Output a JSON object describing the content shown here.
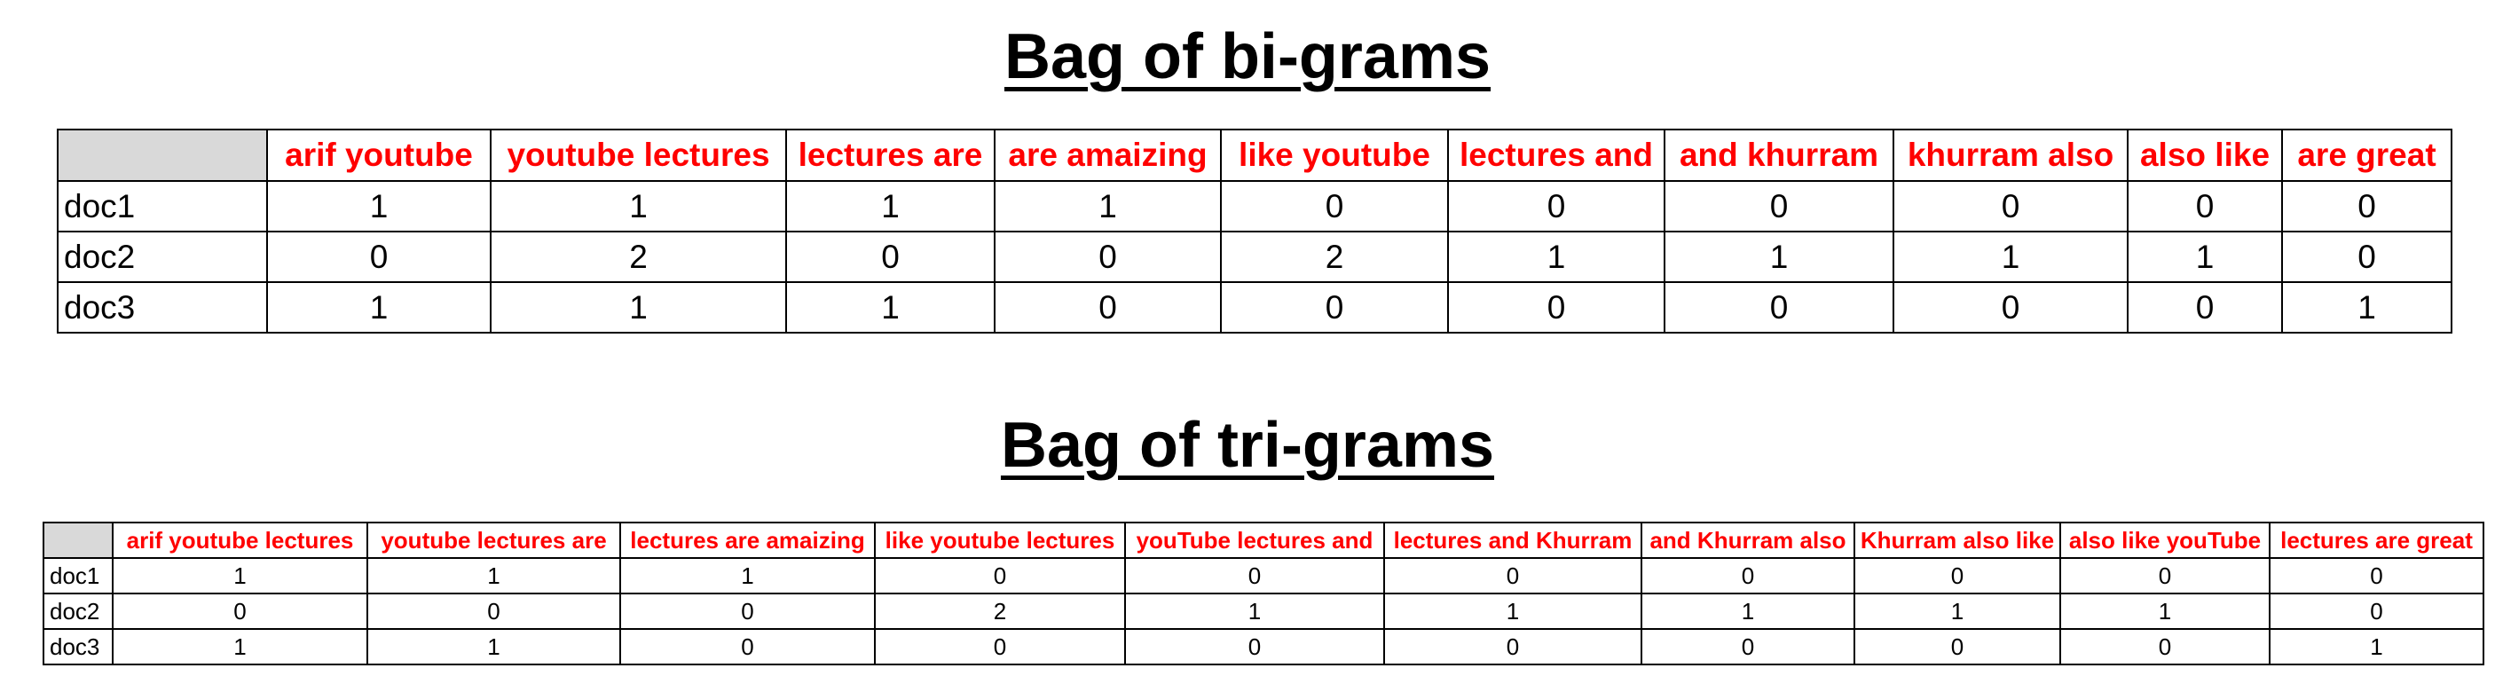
{
  "bigrams": {
    "title": "Bag of bi-grams",
    "headers": [
      "arif youtube",
      "youtube lectures",
      "lectures are",
      "are amaizing",
      "like youtube",
      "lectures and",
      "and khurram",
      "khurram also",
      "also like",
      "are great"
    ],
    "rows": [
      {
        "label": "doc1",
        "values": [
          "1",
          "1",
          "1",
          "1",
          "0",
          "0",
          "0",
          "0",
          "0",
          "0"
        ]
      },
      {
        "label": "doc2",
        "values": [
          "0",
          "2",
          "0",
          "0",
          "2",
          "1",
          "1",
          "1",
          "1",
          "0"
        ]
      },
      {
        "label": "doc3",
        "values": [
          "1",
          "1",
          "1",
          "0",
          "0",
          "0",
          "0",
          "0",
          "0",
          "1"
        ]
      }
    ]
  },
  "trigrams": {
    "title": "Bag of tri-grams",
    "headers": [
      "arif youtube lectures",
      "youtube lectures are",
      "lectures are amaizing",
      "like youtube lectures",
      "youTube lectures and",
      "lectures and Khurram",
      "and Khurram also",
      "Khurram also like",
      "also like youTube",
      "lectures are great"
    ],
    "rows": [
      {
        "label": "doc1",
        "values": [
          "1",
          "1",
          "1",
          "0",
          "0",
          "0",
          "0",
          "0",
          "0",
          "0"
        ]
      },
      {
        "label": "doc2",
        "values": [
          "0",
          "0",
          "0",
          "2",
          "1",
          "1",
          "1",
          "1",
          "1",
          "0"
        ]
      },
      {
        "label": "doc3",
        "values": [
          "1",
          "1",
          "0",
          "0",
          "0",
          "0",
          "0",
          "0",
          "0",
          "1"
        ]
      }
    ]
  }
}
